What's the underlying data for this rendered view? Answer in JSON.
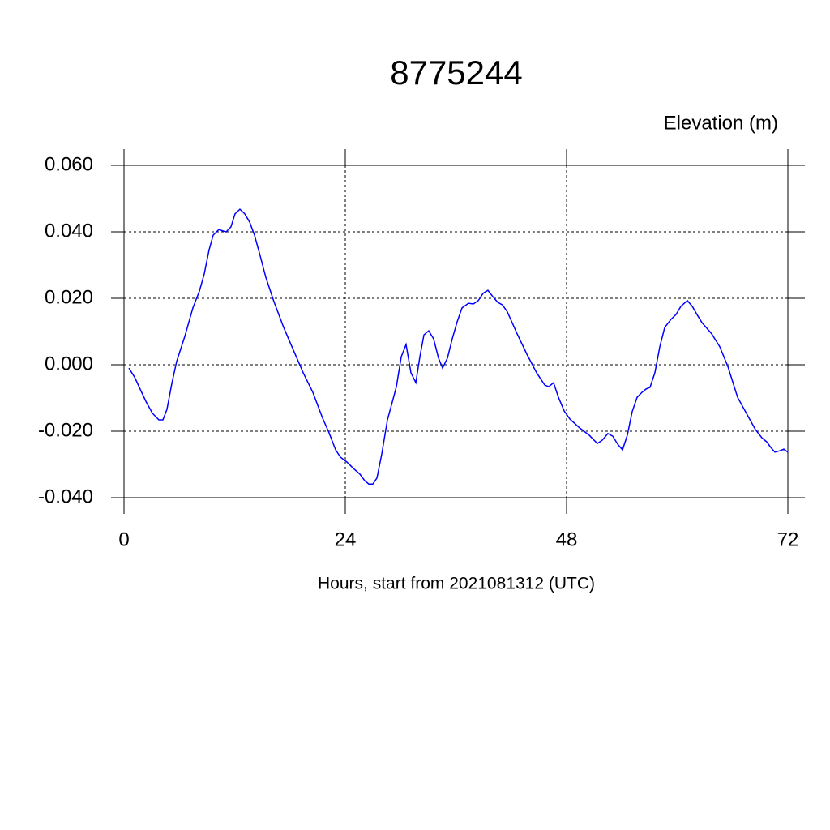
{
  "chart_data": {
    "type": "line",
    "title": "8775244",
    "ylabel": "Elevation (m)",
    "xlabel": "Hours, start from 2021081312 (UTC)",
    "xlim": [
      0,
      72
    ],
    "ylim": [
      -0.04,
      0.06
    ],
    "xticks": [
      0,
      24,
      48,
      72
    ],
    "yticks": [
      {
        "value": -0.04,
        "label": "-0.040"
      },
      {
        "value": -0.02,
        "label": "-0.020"
      },
      {
        "value": 0,
        "label": "0.000"
      },
      {
        "value": 0.02,
        "label": "0.020"
      },
      {
        "value": 0.04,
        "label": "0.040"
      },
      {
        "value": 0.06,
        "label": "0.060"
      }
    ],
    "grid": true,
    "x": [
      0.53,
      1.14,
      2.37,
      3.08,
      3.78,
      4.22,
      4.66,
      5.19,
      5.71,
      6.59,
      7.47,
      8.18,
      8.7,
      9.23,
      9.67,
      10.29,
      10.81,
      11.08,
      11.6,
      12.04,
      12.57,
      13.1,
      13.63,
      14.15,
      14.68,
      15.38,
      16.26,
      17.32,
      18.37,
      19.43,
      20.48,
      21.54,
      22.24,
      22.95,
      23.47,
      24.18,
      24.88,
      25.58,
      26.11,
      26.55,
      26.99,
      27.43,
      27.96,
      28.57,
      29.1,
      29.54,
      30.07,
      30.59,
      31.12,
      31.65,
      32.09,
      32.53,
      33.05,
      33.58,
      34.11,
      34.55,
      35.08,
      35.6,
      36.13,
      36.66,
      37.36,
      37.89,
      38.42,
      38.95,
      39.47,
      40.0,
      40.53,
      41.05,
      41.58,
      42.64,
      43.69,
      44.75,
      45.63,
      46.07,
      46.59,
      47.12,
      47.74,
      48.35,
      49.41,
      50.46,
      51.34,
      51.87,
      52.48,
      53.01,
      53.54,
      54.07,
      54.59,
      55.12,
      55.65,
      56.18,
      56.62,
      57.05,
      57.58,
      58.11,
      58.64,
      59.34,
      59.87,
      60.4,
      61.1,
      61.63,
      62.15,
      62.68,
      63.74,
      64.62,
      65.49,
      66.55,
      67.6,
      68.48,
      69.19,
      69.71,
      70.07,
      70.59,
      71.12,
      71.56,
      72.0
    ],
    "series": [
      {
        "color": "#0000ff",
        "values": [
          -0.001,
          -0.0037,
          -0.011,
          -0.0146,
          -0.0166,
          -0.0166,
          -0.0134,
          -0.0056,
          0.001,
          0.0085,
          0.0171,
          0.0222,
          0.0273,
          0.0346,
          0.039,
          0.0407,
          0.0402,
          0.04,
          0.0415,
          0.0454,
          0.0468,
          0.0454,
          0.0429,
          0.039,
          0.0337,
          0.0263,
          0.019,
          0.0112,
          0.0044,
          -0.0024,
          -0.0083,
          -0.0161,
          -0.0205,
          -0.0256,
          -0.0278,
          -0.0293,
          -0.0312,
          -0.0329,
          -0.0349,
          -0.0359,
          -0.0359,
          -0.0341,
          -0.0268,
          -0.0166,
          -0.0112,
          -0.0066,
          0.0024,
          0.0061,
          -0.0024,
          -0.0054,
          0.0024,
          0.009,
          0.0102,
          0.0078,
          0.002,
          -0.001,
          0.002,
          0.0078,
          0.0129,
          0.0171,
          0.0185,
          0.0183,
          0.0193,
          0.0215,
          0.0224,
          0.0205,
          0.0188,
          0.018,
          0.0159,
          0.0093,
          0.0032,
          -0.0024,
          -0.0061,
          -0.0066,
          -0.0054,
          -0.0098,
          -0.0139,
          -0.0163,
          -0.019,
          -0.0212,
          -0.0237,
          -0.0227,
          -0.0207,
          -0.0215,
          -0.0239,
          -0.0256,
          -0.0212,
          -0.0141,
          -0.0098,
          -0.0083,
          -0.0073,
          -0.0068,
          -0.0024,
          0.0054,
          0.0112,
          0.0137,
          0.0151,
          0.0176,
          0.0193,
          0.0176,
          0.0151,
          0.0127,
          0.0093,
          0.0054,
          -0.0005,
          -0.0098,
          -0.0151,
          -0.0195,
          -0.022,
          -0.0232,
          -0.0246,
          -0.0263,
          -0.0259,
          -0.0254,
          -0.0263
        ]
      }
    ]
  }
}
